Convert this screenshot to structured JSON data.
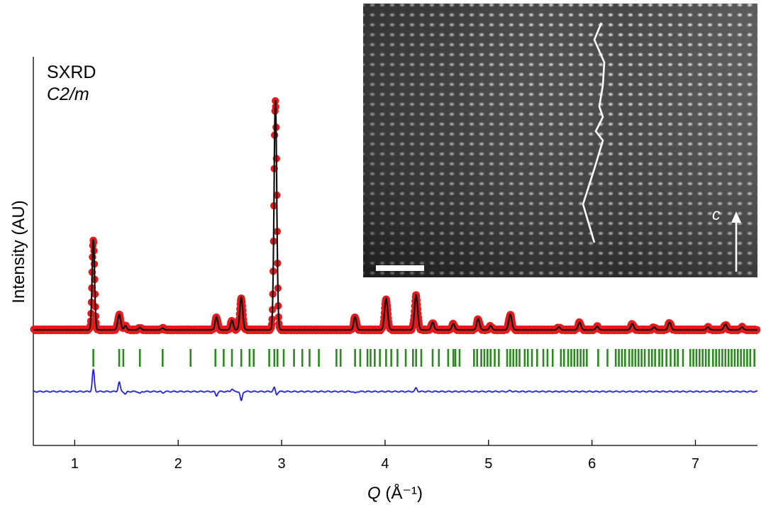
{
  "chart_data": {
    "type": "line",
    "title": "",
    "annotations": {
      "technique": "SXRD",
      "space_group": "C2/m"
    },
    "xlabel": {
      "symbol": "Q",
      "unit": " (Å⁻¹)"
    },
    "ylabel": "Intensity (AU)",
    "xlim": [
      0.6,
      7.6
    ],
    "ylim": [
      -1.1,
      7.0
    ],
    "xticks": [
      1,
      2,
      3,
      4,
      5,
      6,
      7
    ],
    "grid": false,
    "legend": "none",
    "colors": {
      "observed": "#e8191c",
      "calculated": "#111111",
      "ticks": "#2a8a1e",
      "difference": "#2020dd"
    },
    "peaks": [
      {
        "q": 1.18,
        "h": 2.65,
        "w": 0.012
      },
      {
        "q": 1.43,
        "h": 0.45,
        "w": 0.014
      },
      {
        "q": 1.49,
        "h": 0.12,
        "w": 0.012
      },
      {
        "q": 1.63,
        "h": 0.07,
        "w": 0.012
      },
      {
        "q": 1.85,
        "h": 0.05,
        "w": 0.012
      },
      {
        "q": 2.37,
        "h": 0.38,
        "w": 0.013
      },
      {
        "q": 2.52,
        "h": 0.28,
        "w": 0.013
      },
      {
        "q": 2.61,
        "h": 0.95,
        "w": 0.014
      },
      {
        "q": 2.94,
        "h": 6.75,
        "w": 0.013
      },
      {
        "q": 3.71,
        "h": 0.38,
        "w": 0.013
      },
      {
        "q": 4.01,
        "h": 0.92,
        "w": 0.015
      },
      {
        "q": 4.3,
        "h": 1.02,
        "w": 0.015
      },
      {
        "q": 4.46,
        "h": 0.22,
        "w": 0.013
      },
      {
        "q": 4.66,
        "h": 0.18,
        "w": 0.013
      },
      {
        "q": 4.9,
        "h": 0.32,
        "w": 0.014
      },
      {
        "q": 5.02,
        "h": 0.12,
        "w": 0.013
      },
      {
        "q": 5.21,
        "h": 0.45,
        "w": 0.015
      },
      {
        "q": 5.68,
        "h": 0.08,
        "w": 0.013
      },
      {
        "q": 5.88,
        "h": 0.22,
        "w": 0.014
      },
      {
        "q": 6.05,
        "h": 0.1,
        "w": 0.013
      },
      {
        "q": 6.39,
        "h": 0.18,
        "w": 0.014
      },
      {
        "q": 6.6,
        "h": 0.08,
        "w": 0.013
      },
      {
        "q": 6.75,
        "h": 0.22,
        "w": 0.014
      },
      {
        "q": 7.12,
        "h": 0.08,
        "w": 0.013
      },
      {
        "q": 7.29,
        "h": 0.16,
        "w": 0.014
      },
      {
        "q": 7.45,
        "h": 0.08,
        "w": 0.013
      }
    ],
    "reflection_positions": [
      1.18,
      1.43,
      1.47,
      1.63,
      1.85,
      2.12,
      2.36,
      2.44,
      2.52,
      2.61,
      2.69,
      2.73,
      2.88,
      2.93,
      2.96,
      3.02,
      3.12,
      3.2,
      3.27,
      3.36,
      3.53,
      3.57,
      3.71,
      3.76,
      3.83,
      3.86,
      3.9,
      3.95,
      4.01,
      4.06,
      4.12,
      4.2,
      4.27,
      4.3,
      4.35,
      4.46,
      4.52,
      4.61,
      4.66,
      4.68,
      4.72,
      4.86,
      4.89,
      4.93,
      4.96,
      4.99,
      5.02,
      5.06,
      5.1,
      5.18,
      5.21,
      5.24,
      5.27,
      5.3,
      5.35,
      5.38,
      5.42,
      5.47,
      5.53,
      5.57,
      5.62,
      5.7,
      5.73,
      5.77,
      5.8,
      5.83,
      5.86,
      5.89,
      5.92,
      5.95,
      6.06,
      6.15,
      6.23,
      6.26,
      6.29,
      6.32,
      6.36,
      6.39,
      6.42,
      6.45,
      6.48,
      6.51,
      6.55,
      6.58,
      6.61,
      6.65,
      6.68,
      6.72,
      6.76,
      6.8,
      6.83,
      6.88,
      6.95,
      6.98,
      7.01,
      7.04,
      7.07,
      7.1,
      7.13,
      7.17,
      7.2,
      7.23,
      7.26,
      7.29,
      7.32,
      7.35,
      7.38,
      7.41,
      7.44,
      7.47,
      7.5,
      7.53,
      7.57
    ],
    "difference_features": [
      {
        "q": 1.18,
        "d": 0.5
      },
      {
        "q": 1.43,
        "d": 0.22
      },
      {
        "q": 1.49,
        "d": -0.06
      },
      {
        "q": 1.63,
        "d": -0.05
      },
      {
        "q": 1.85,
        "d": -0.03
      },
      {
        "q": 2.37,
        "d": -0.1
      },
      {
        "q": 2.52,
        "d": 0.06
      },
      {
        "q": 2.61,
        "d": -0.22
      },
      {
        "q": 2.93,
        "d": 0.1
      },
      {
        "q": 2.95,
        "d": -0.08
      },
      {
        "q": 3.71,
        "d": -0.04
      },
      {
        "q": 4.3,
        "d": 0.08
      },
      {
        "q": 5.21,
        "d": 0.02
      }
    ],
    "inset": {
      "description": "atomic-resolution image",
      "axis_label": "c"
    }
  }
}
